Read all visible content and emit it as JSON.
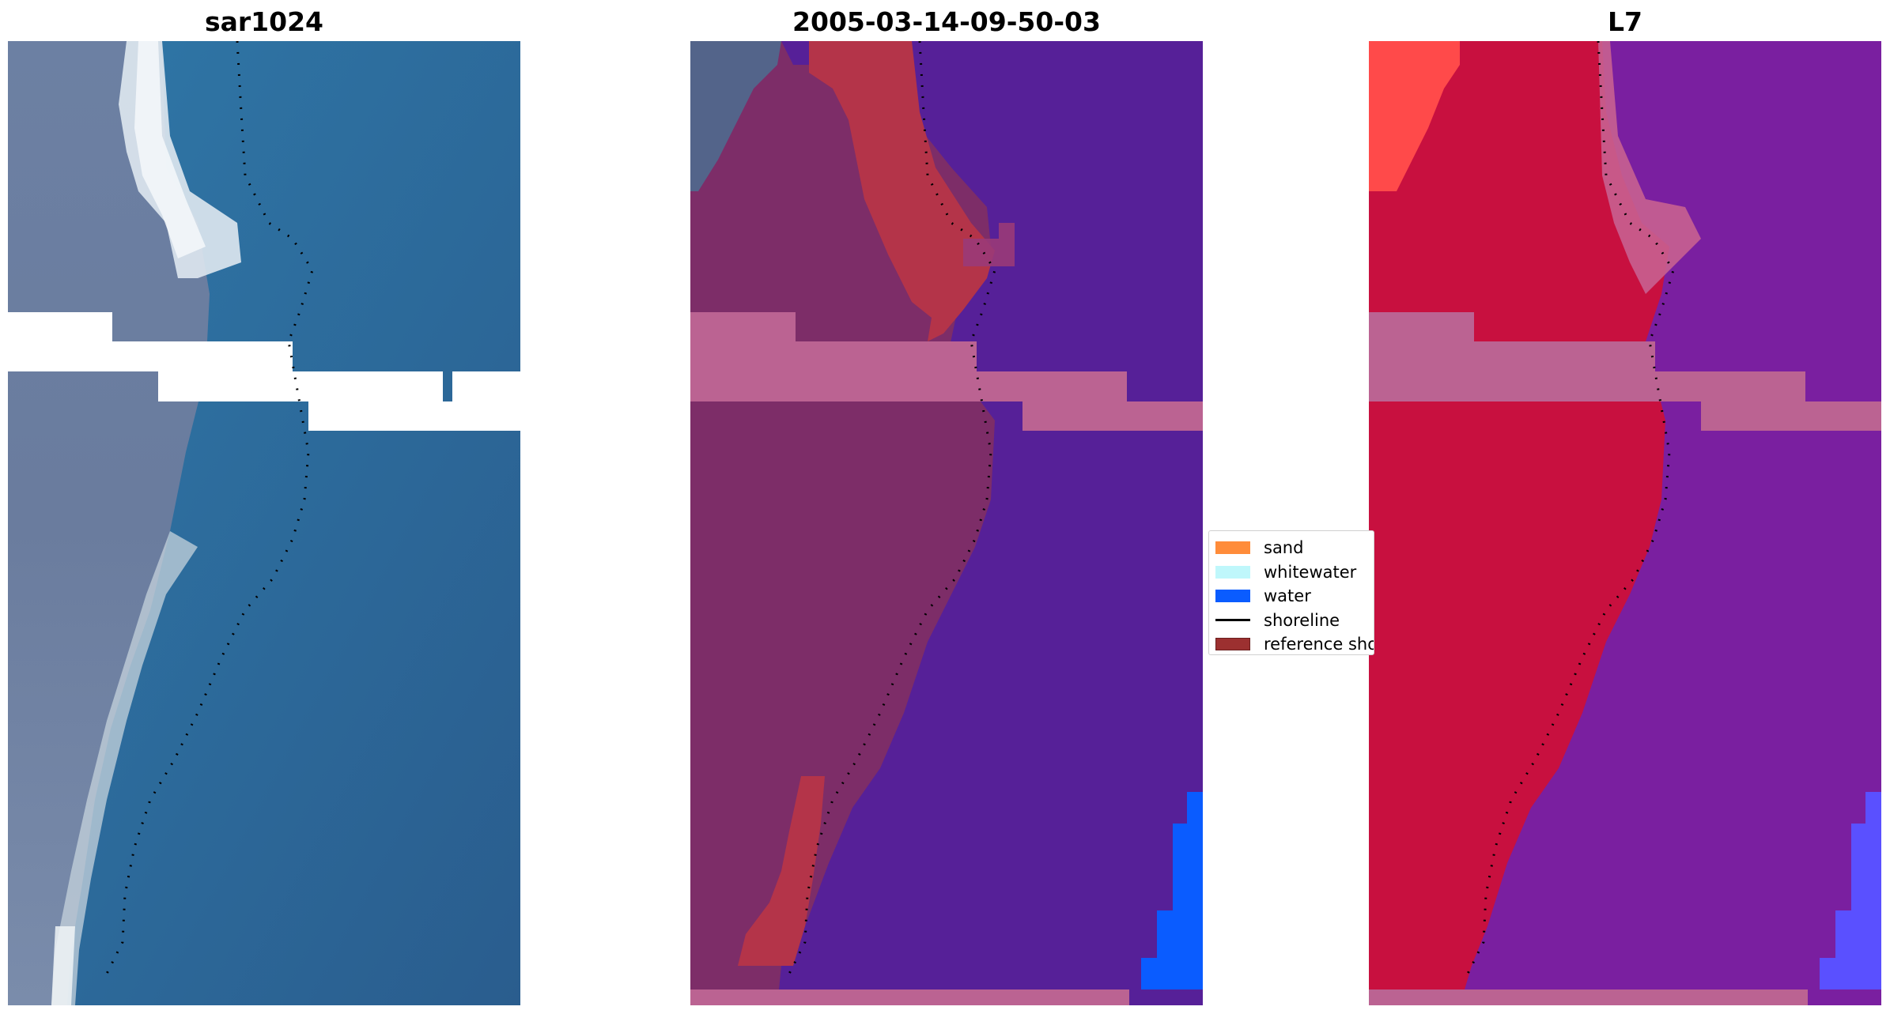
{
  "titles": {
    "left": "sar1024",
    "middle": "2005-03-14-09-50-03",
    "right": "L7"
  },
  "legend": {
    "items": [
      {
        "label": "sand",
        "color": "#ff8c3a",
        "kind": "patch"
      },
      {
        "label": "whitewater",
        "color": "#bff7fb",
        "kind": "patch"
      },
      {
        "label": "water",
        "color": "#0a5cff",
        "kind": "patch"
      },
      {
        "label": "shoreline",
        "color": "#000000",
        "kind": "line"
      },
      {
        "label": "reference sho",
        "color": "#9c3030",
        "kind": "patch"
      }
    ]
  },
  "colors": {
    "nodata_band": "#bb6392",
    "water_class": "#562098",
    "water_pure": "#0a5cff",
    "reference_red": "#b43449",
    "land_mauve": "#7d2d68",
    "rgb_water": "#2d6e9e",
    "rgb_land": "#6a7fa3",
    "rgb_surf": "#e6eef3",
    "fc_land": "#c8103f",
    "fc_water": "#7a1fa0",
    "fc_bright": "#ff4a4a",
    "fc_blue": "#5a50ff"
  }
}
